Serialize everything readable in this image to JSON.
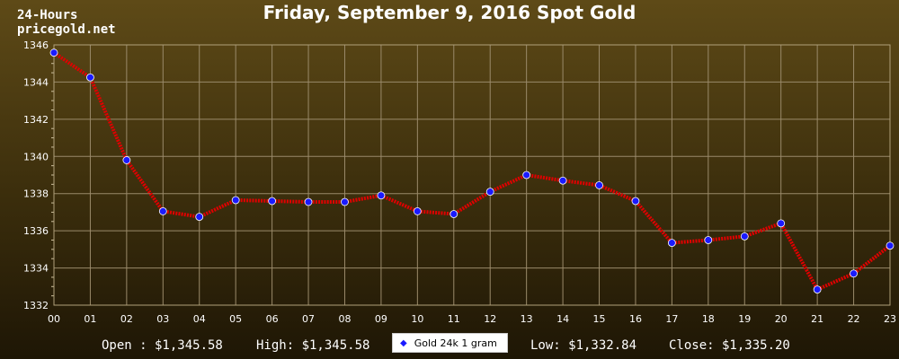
{
  "header": {
    "period": "24-Hours",
    "site": "pricegold.net",
    "title": "Friday, September 9, 2016 Spot Gold"
  },
  "stats": {
    "open": "Open : $1,345.58",
    "high": "High: $1,345.58",
    "low": "Low: $1,332.84",
    "close": "Close: $1,335.20"
  },
  "colors": {
    "line": "#e00000",
    "marker": "#1a1aff",
    "grid": "#9a8a6a",
    "text": "#ffffff"
  },
  "chart_data": {
    "type": "line",
    "title": "Friday, September 9, 2016 Spot Gold",
    "xlabel": "",
    "ylabel": "",
    "categories": [
      "00",
      "01",
      "02",
      "03",
      "04",
      "05",
      "06",
      "07",
      "08",
      "09",
      "10",
      "11",
      "12",
      "13",
      "14",
      "15",
      "16",
      "17",
      "18",
      "19",
      "20",
      "21",
      "22",
      "23"
    ],
    "ylim": [
      1332,
      1346
    ],
    "yticks": [
      1332,
      1334,
      1336,
      1338,
      1340,
      1342,
      1344,
      1346
    ],
    "grid": true,
    "legend": "bottom-center",
    "series": [
      {
        "name": "Gold 24k 1 gram",
        "values": [
          1345.58,
          1344.25,
          1339.8,
          1337.05,
          1336.75,
          1337.65,
          1337.6,
          1337.55,
          1337.55,
          1337.9,
          1337.05,
          1336.9,
          1338.1,
          1339.0,
          1338.7,
          1338.45,
          1337.6,
          1335.35,
          1335.5,
          1335.7,
          1336.4,
          1332.84,
          1333.7,
          1335.2
        ]
      }
    ]
  }
}
